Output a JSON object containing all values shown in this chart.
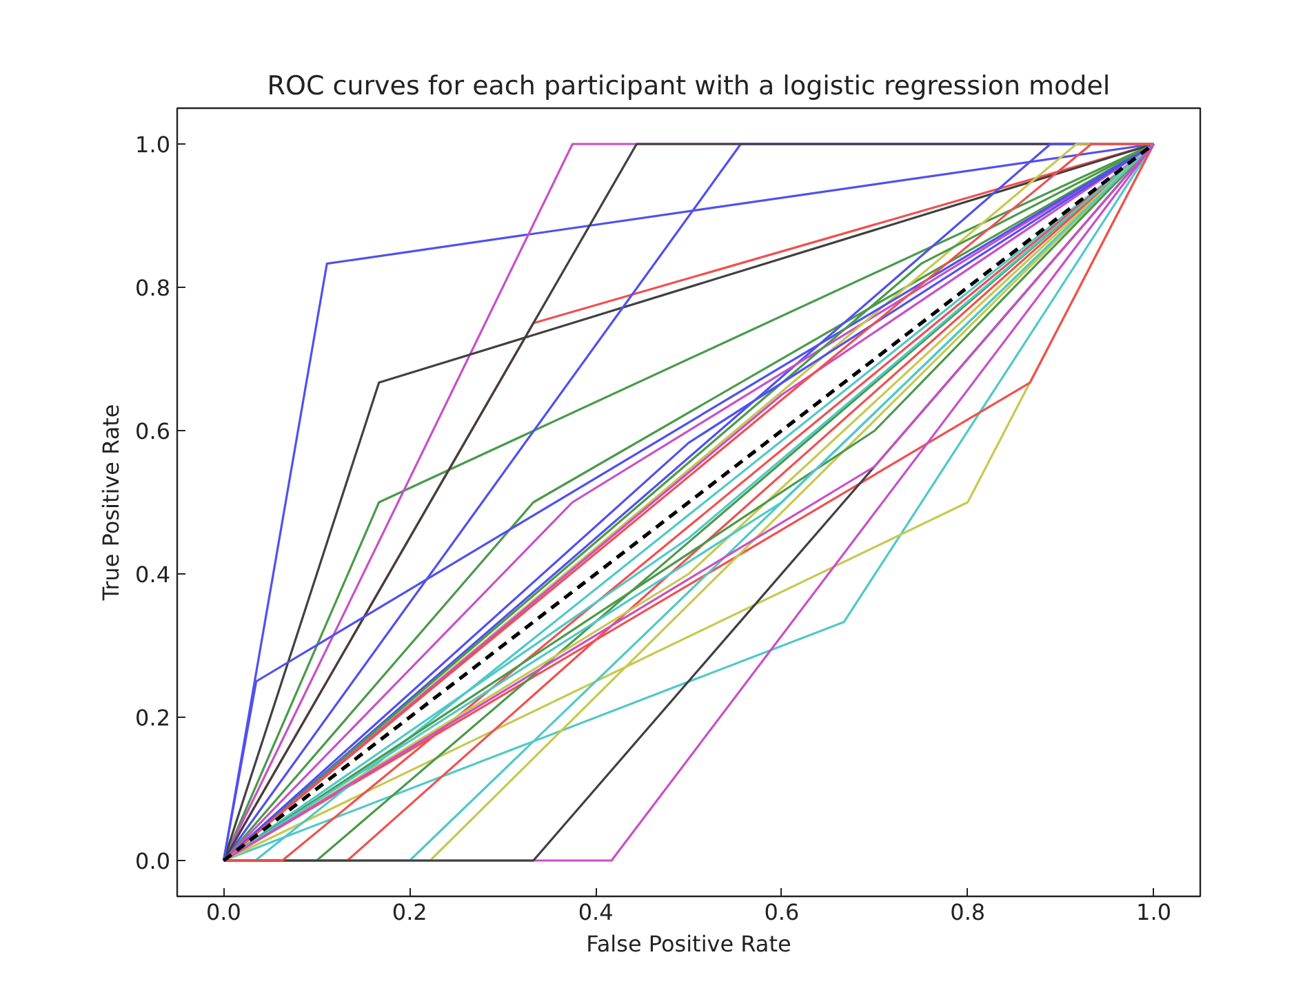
{
  "chart_data": {
    "type": "line",
    "title": "ROC curves for each participant with a logistic regression model",
    "xlabel": "False Positive Rate",
    "ylabel": "True Positive Rate",
    "xlim": [
      -0.05,
      1.05
    ],
    "ylim": [
      -0.05,
      1.05
    ],
    "xticks": [
      {
        "value": 0,
        "label": "0.0"
      },
      {
        "value": 0.2,
        "label": "0.2"
      },
      {
        "value": 0.4,
        "label": "0.4"
      },
      {
        "value": 0.6,
        "label": "0.6"
      },
      {
        "value": 0.8,
        "label": "0.8"
      },
      {
        "value": 1,
        "label": "1.0"
      }
    ],
    "yticks": [
      {
        "value": 0,
        "label": "0.0"
      },
      {
        "value": 0.2,
        "label": "0.2"
      },
      {
        "value": 0.4,
        "label": "0.4"
      },
      {
        "value": 0.6,
        "label": "0.6"
      },
      {
        "value": 0.8,
        "label": "0.8"
      },
      {
        "value": 1,
        "label": "1.0"
      }
    ],
    "line_style": "solid",
    "series": [
      {
        "color": "#5050f0",
        "x": [
          0,
          0.111,
          1
        ],
        "values": [
          0,
          0.833,
          1
        ]
      },
      {
        "color": "#4a9a4a",
        "x": [
          0,
          0.167,
          1
        ],
        "values": [
          0,
          0.5,
          1
        ]
      },
      {
        "color": "#f05050",
        "x": [
          0,
          0.333,
          1
        ],
        "values": [
          0,
          0.75,
          1
        ]
      },
      {
        "color": "#50c8c8",
        "x": [
          0,
          0.667,
          1
        ],
        "values": [
          0,
          0.333,
          1
        ]
      },
      {
        "color": "#c850c8",
        "x": [
          0,
          0.375,
          1
        ],
        "values": [
          0,
          1,
          1
        ]
      },
      {
        "color": "#c8c850",
        "x": [
          0,
          0.8,
          1
        ],
        "values": [
          0,
          0.5,
          1
        ]
      },
      {
        "color": "#404040",
        "x": [
          0,
          0.167,
          1
        ],
        "values": [
          0,
          0.667,
          1
        ]
      },
      {
        "color": "#5050f0",
        "x": [
          0,
          0.556,
          1
        ],
        "values": [
          0,
          1,
          1
        ]
      },
      {
        "color": "#4a9a4a",
        "x": [
          0,
          0.333,
          1
        ],
        "values": [
          0,
          0.5,
          1
        ]
      },
      {
        "color": "#f05050",
        "x": [
          0,
          0.867,
          1
        ],
        "values": [
          0,
          0.667,
          1
        ]
      },
      {
        "color": "#50c8c8",
        "x": [
          0,
          0.2,
          1
        ],
        "values": [
          0,
          0,
          1
        ]
      },
      {
        "color": "#c850c8",
        "x": [
          0,
          0.417,
          1
        ],
        "values": [
          0,
          0,
          1
        ]
      },
      {
        "color": "#c8c850",
        "x": [
          0,
          0.222,
          1
        ],
        "values": [
          0,
          0,
          1
        ]
      },
      {
        "color": "#404040",
        "x": [
          0,
          0.444,
          1
        ],
        "values": [
          0,
          1,
          1
        ]
      },
      {
        "color": "#5050f0",
        "x": [
          0,
          0.889,
          1
        ],
        "values": [
          0,
          1,
          1
        ]
      },
      {
        "color": "#4a9a4a",
        "x": [
          0,
          0.1,
          1
        ],
        "values": [
          0,
          0,
          1
        ]
      },
      {
        "color": "#f05050",
        "x": [
          0,
          0.133,
          1
        ],
        "values": [
          0,
          0,
          1
        ]
      },
      {
        "color": "#50c8c8",
        "x": [
          0,
          0.034,
          1
        ],
        "values": [
          0,
          0,
          1
        ]
      },
      {
        "color": "#c850c8",
        "x": [
          0,
          0.375,
          1
        ],
        "values": [
          0,
          0.5,
          1
        ]
      },
      {
        "color": "#c8c850",
        "x": [
          0,
          0.917,
          1
        ],
        "values": [
          0,
          1,
          1
        ]
      },
      {
        "color": "#404040",
        "x": [
          0,
          0.333,
          1
        ],
        "values": [
          0,
          0,
          1
        ]
      },
      {
        "color": "#5050f0",
        "x": [
          0,
          0.035,
          1
        ],
        "values": [
          0,
          0.25,
          1
        ]
      },
      {
        "color": "#4a9a4a",
        "x": [
          0,
          0.75,
          1
        ],
        "values": [
          0,
          0.833,
          1
        ]
      },
      {
        "color": "#f05050",
        "x": [
          0,
          0.063,
          1
        ],
        "values": [
          0,
          0,
          1
        ]
      },
      {
        "color": "#50c8c8",
        "x": [
          0,
          0.5,
          1
        ],
        "values": [
          0,
          0.45,
          1
        ]
      },
      {
        "color": "#c850c8",
        "x": [
          0,
          0.6,
          1
        ],
        "values": [
          0,
          0.65,
          1
        ]
      },
      {
        "color": "#c8c850",
        "x": [
          0,
          0.5,
          1
        ],
        "values": [
          0,
          0.4,
          1
        ]
      },
      {
        "color": "#5050f0",
        "x": [
          0,
          0.5,
          1
        ],
        "values": [
          0,
          0.583,
          1
        ]
      },
      {
        "color": "#4a9a4a",
        "x": [
          0,
          0.7,
          1
        ],
        "values": [
          0,
          0.6,
          1
        ]
      },
      {
        "color": "#f05050",
        "x": [
          0,
          0.933,
          1
        ],
        "values": [
          0,
          1,
          1
        ]
      },
      {
        "color": "#50c8c8",
        "x": [
          0,
          0.6,
          1
        ],
        "values": [
          0,
          0.5,
          1
        ]
      },
      {
        "color": "#c850c8",
        "x": [
          0,
          0.7,
          1
        ],
        "values": [
          0,
          0.55,
          1
        ]
      },
      {
        "color": "#000000",
        "x": [
          0,
          1
        ],
        "values": [
          0,
          1
        ],
        "line_style": "dashed"
      }
    ]
  }
}
